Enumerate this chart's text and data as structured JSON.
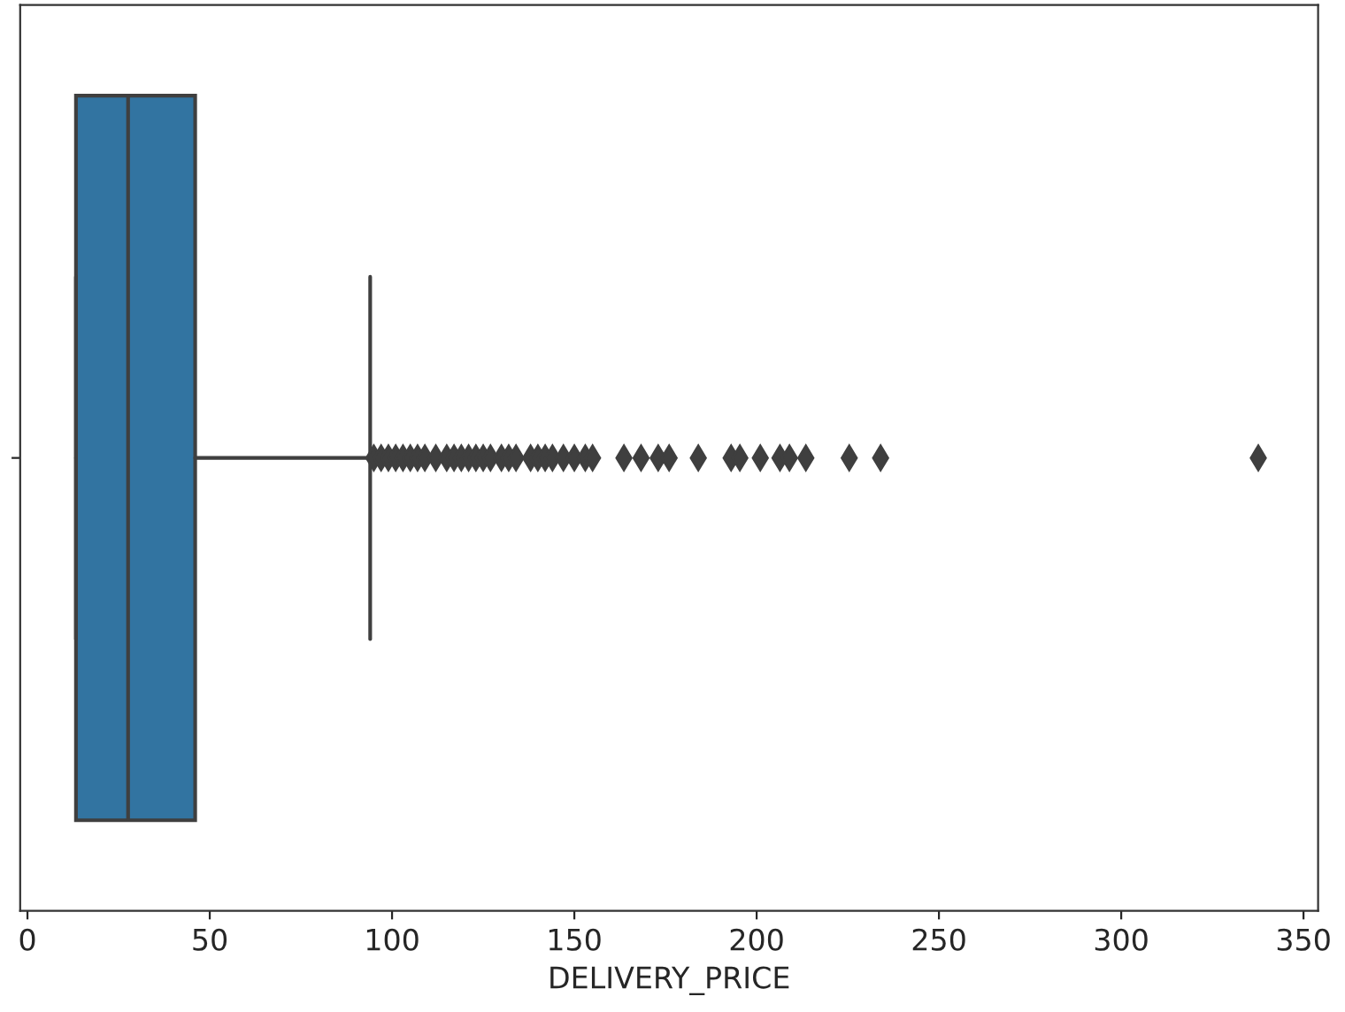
{
  "chart_data": {
    "type": "box",
    "orientation": "horizontal",
    "categories": [
      null
    ],
    "boxes": [
      {
        "low": 13.3,
        "q1": 13.3,
        "median": 27.6,
        "q3": 46,
        "high": 94,
        "outliers": [
          95,
          97,
          99,
          101,
          103,
          105,
          107,
          109,
          112,
          115,
          117,
          119,
          121,
          123,
          125,
          127,
          130,
          132,
          134,
          138,
          140,
          142,
          144,
          147,
          150,
          153,
          155,
          163.6,
          168.3,
          173,
          176,
          184,
          193,
          195.4,
          201,
          206.4,
          209,
          213.5,
          225.4,
          234,
          337.6
        ]
      }
    ],
    "color": "#3274a1",
    "xlim": [
      -2,
      354
    ],
    "xticks": [
      0,
      50,
      100,
      150,
      200,
      250,
      300,
      350
    ],
    "xlabel": "DELIVERY_PRICE",
    "tick_labels": "x",
    "marker": "diamond",
    "grid": false
  }
}
